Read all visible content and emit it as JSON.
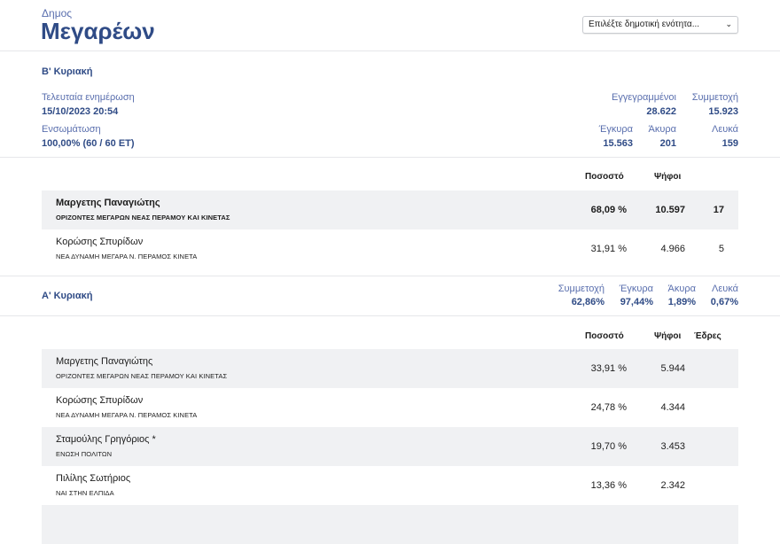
{
  "header": {
    "municipality_label": "Δημος",
    "municipality_name": "Μεγαρέων",
    "select_placeholder": "Επιλέξτε δημοτική ενότητα..."
  },
  "round_b": {
    "title": "Β' Κυριακή",
    "last_update_label": "Τελευταία ενημέρωση",
    "last_update": "15/10/2023 20:54",
    "integration_label": "Ενσωμάτωση",
    "integration": "100,00% (60 / 60 ΕΤ)",
    "registered_label": "Εγγεγραμμένοι",
    "registered": "28.622",
    "turnout_label": "Συμμετοχή",
    "turnout": "15.923",
    "valid_label": "Έγκυρα",
    "valid": "15.563",
    "invalid_label": "Άκυρα",
    "invalid": "201",
    "blank_label": "Λευκά",
    "blank": "159",
    "columns": {
      "pct": "Ποσοστό",
      "votes": "Ψήφοι"
    },
    "rows": [
      {
        "name": "Μαργετης Παναγιώτης",
        "party": "ΟΡΙΖΟΝΤΕΣ ΜΕΓΑΡΩΝ ΝΕΑΣ ΠΕΡΑΜΟΥ ΚΑΙ ΚΙΝΕΤΑΣ",
        "pct": "68,09 %",
        "votes": "10.597",
        "seats": "17"
      },
      {
        "name": "Κορώσης Σπυρίδων",
        "party": "ΝΕΑ ΔΥΝΑΜΗ ΜΕΓΑΡΑ Ν. ΠΕΡΑΜΟΣ ΚΙΝΕΤΑ",
        "pct": "31,91 %",
        "votes": "4.966",
        "seats": "5"
      }
    ]
  },
  "round_a": {
    "title": "Α' Κυριακή",
    "turnout_label": "Συμμετοχή",
    "turnout": "62,86%",
    "valid_label": "Έγκυρα",
    "valid": "97,44%",
    "invalid_label": "Άκυρα",
    "invalid": "1,89%",
    "blank_label": "Λευκά",
    "blank": "0,67%",
    "columns": {
      "pct": "Ποσοστό",
      "votes": "Ψήφοι",
      "seats": "Έδρες"
    },
    "rows": [
      {
        "name": "Μαργετης Παναγιώτης",
        "party": "ΟΡΙΖΟΝΤΕΣ ΜΕΓΑΡΩΝ ΝΕΑΣ ΠΕΡΑΜΟΥ ΚΑΙ ΚΙΝΕΤΑΣ",
        "pct": "33,91 %",
        "votes": "5.944"
      },
      {
        "name": "Κορώσης Σπυρίδων",
        "party": "ΝΕΑ ΔΥΝΑΜΗ ΜΕΓΑΡΑ Ν. ΠΕΡΑΜΟΣ ΚΙΝΕΤΑ",
        "pct": "24,78 %",
        "votes": "4.344"
      },
      {
        "name": "Σταμούλης Γρηγόριος *",
        "party": "ΕΝΩΣΗ ΠΟΛΙΤΩΝ",
        "pct": "19,70 %",
        "votes": "3.453"
      },
      {
        "name": "Πιλίλης Σωτήριος",
        "party": "ΝΑΙ ΣΤΗΝ ΕΛΠΙΔΑ",
        "pct": "13,36 %",
        "votes": "2.342"
      }
    ]
  }
}
